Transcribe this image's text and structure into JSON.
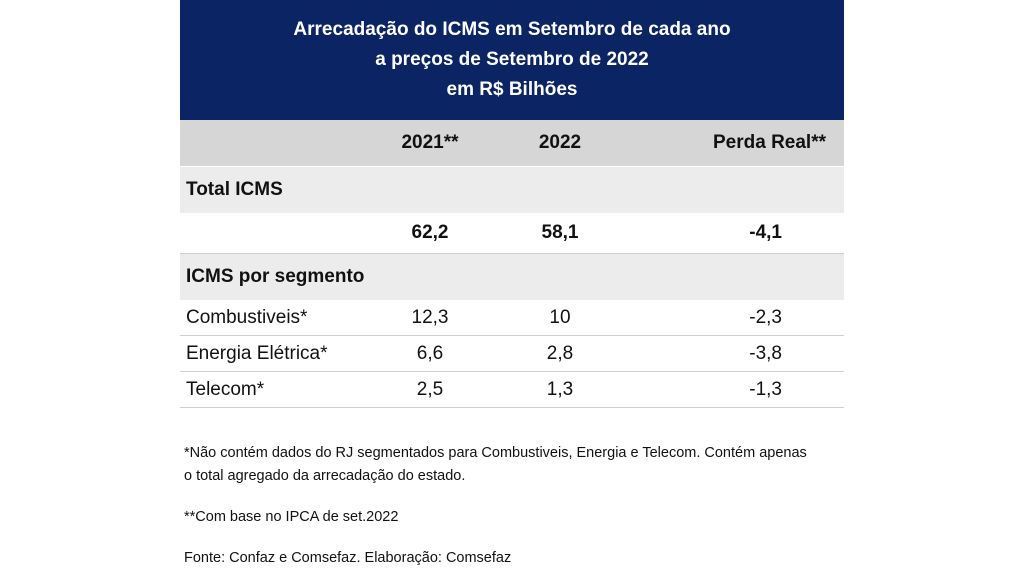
{
  "title": {
    "line1": "Arrecadação do ICMS em Setembro de cada ano",
    "line2": "a preços de Setembro de 2022",
    "line3": "em R$ Bilhões"
  },
  "table": {
    "headers": [
      "2021**",
      "2022",
      "Perda Real**"
    ],
    "total_section_label": "Total ICMS",
    "total_values": [
      "62,2",
      "58,1",
      "-4,1"
    ],
    "segment_section_label": "ICMS por segmento",
    "segments": [
      {
        "label": "Combustiveis*",
        "values": [
          "12,3",
          "10",
          "-2,3"
        ]
      },
      {
        "label": "Energia Elétrica*",
        "values": [
          "6,6",
          "2,8",
          "-3,8"
        ]
      },
      {
        "label": "Telecom*",
        "values": [
          "2,5",
          "1,3",
          "-1,3"
        ]
      }
    ]
  },
  "notes": {
    "note1_line1": "*Não contém dados do RJ segmentados para Combustiveis, Energia e Telecom. Contém apenas",
    "note1_line2": "o total agregado da arrecadação do estado.",
    "note2": "**Com base no IPCA de set.2022",
    "source": "Fonte: Confaz e Comsefaz. Elaboração: Comsefaz"
  },
  "colors": {
    "title_bg": "#0b2463",
    "header_bg": "#d6d6d6",
    "section_bg": "#ececec"
  }
}
